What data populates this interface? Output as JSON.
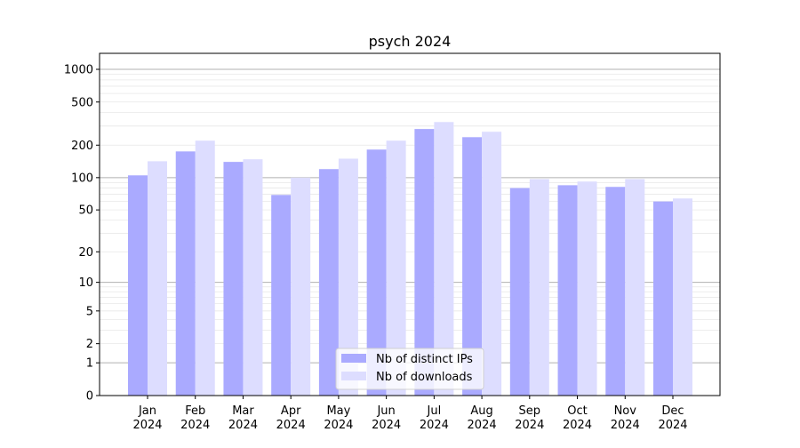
{
  "chart_data": {
    "type": "bar",
    "title": "psych 2024",
    "xlabel": "",
    "ylabel": "",
    "yscale": "log(1+x)",
    "ylim": [
      0,
      1300
    ],
    "categories": [
      [
        "Jan",
        "2024"
      ],
      [
        "Feb",
        "2024"
      ],
      [
        "Mar",
        "2024"
      ],
      [
        "Apr",
        "2024"
      ],
      [
        "May",
        "2024"
      ],
      [
        "Jun",
        "2024"
      ],
      [
        "Jul",
        "2024"
      ],
      [
        "Aug",
        "2024"
      ],
      [
        "Sep",
        "2024"
      ],
      [
        "Oct",
        "2024"
      ],
      [
        "Nov",
        "2024"
      ],
      [
        "Dec",
        "2024"
      ]
    ],
    "series": [
      {
        "name": "Nb of distinct IPs",
        "color": "#aaaaff",
        "values": [
          105,
          175,
          140,
          69,
          120,
          182,
          282,
          237,
          80,
          85,
          82,
          60
        ]
      },
      {
        "name": "Nb of downloads",
        "color": "#ddddff",
        "values": [
          142,
          220,
          148,
          100,
          150,
          220,
          327,
          266,
          97,
          92,
          97,
          64
        ]
      }
    ],
    "yticks": [
      0,
      1,
      2,
      5,
      10,
      20,
      50,
      100,
      200,
      500,
      1000
    ],
    "ytick_labels": [
      "0",
      "1",
      "2",
      "5",
      "10",
      "20",
      "50",
      "100",
      "200",
      "500",
      "1000"
    ],
    "grid": true,
    "legend_position": "lower-center"
  }
}
